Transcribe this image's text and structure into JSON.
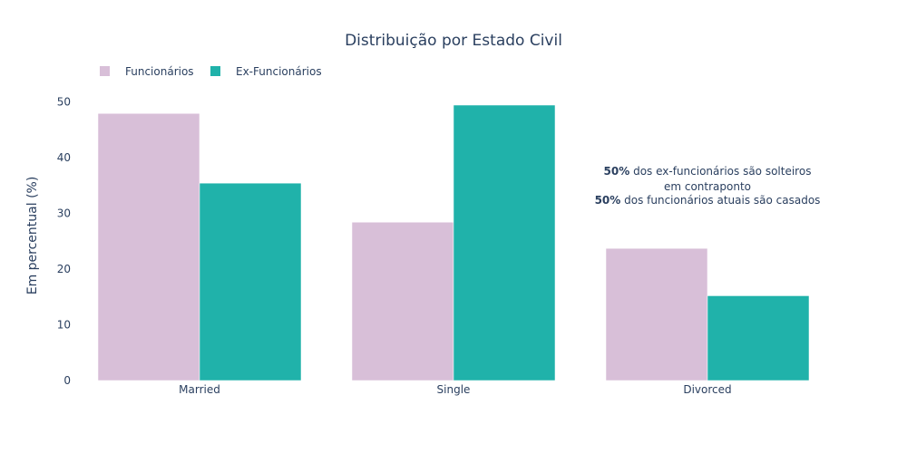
{
  "chart_data": {
    "type": "bar",
    "title": "Distribuição por Estado Civil",
    "xlabel": "",
    "ylabel": "Em percentual (%)",
    "categories": [
      "Married",
      "Single",
      "Divorced"
    ],
    "ylim": [
      0,
      52
    ],
    "yticks": [
      0,
      10,
      20,
      30,
      40,
      50
    ],
    "grid": false,
    "legend_position": "top-left",
    "series": [
      {
        "name": "Funcionários",
        "color": "#d8bfd8",
        "values": [
          47.9,
          28.4,
          23.7
        ]
      },
      {
        "name": "Ex-Funcionários",
        "color": "#20b2aa",
        "values": [
          35.4,
          49.4,
          15.2
        ]
      }
    ],
    "annotation": {
      "line1_bold": "50%",
      "line1_rest": " dos ex-funcionários são solteiros",
      "line2": "em contraponto",
      "line3_bold": "50%",
      "line3_rest": " dos funcionários atuais são casados"
    }
  }
}
